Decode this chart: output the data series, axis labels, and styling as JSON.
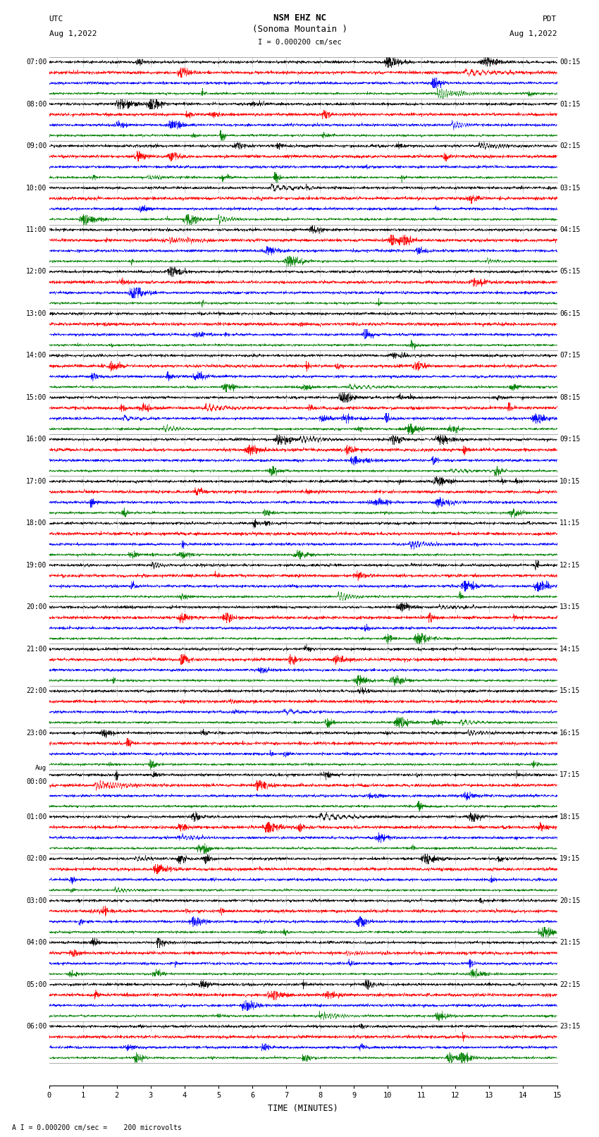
{
  "title_line1": "NSM EHZ NC",
  "title_line2": "(Sonoma Mountain )",
  "scale_label": "I = 0.000200 cm/sec",
  "left_label_top": "UTC",
  "left_label_date": "Aug 1,2022",
  "right_label_top": "PDT",
  "right_label_date": "Aug 1,2022",
  "bottom_label": "TIME (MINUTES)",
  "footer_text": "A I = 0.000200 cm/sec =    200 microvolts",
  "xlabel_ticks": [
    0,
    1,
    2,
    3,
    4,
    5,
    6,
    7,
    8,
    9,
    10,
    11,
    12,
    13,
    14,
    15
  ],
  "utc_times": [
    "07:00",
    "08:00",
    "09:00",
    "10:00",
    "11:00",
    "12:00",
    "13:00",
    "14:00",
    "15:00",
    "16:00",
    "17:00",
    "18:00",
    "19:00",
    "20:00",
    "21:00",
    "22:00",
    "23:00",
    "00:00",
    "01:00",
    "02:00",
    "03:00",
    "04:00",
    "05:00",
    "06:00"
  ],
  "utc_aug_row": 17,
  "pdt_times": [
    "00:15",
    "01:15",
    "02:15",
    "03:15",
    "04:15",
    "05:15",
    "06:15",
    "07:15",
    "08:15",
    "09:15",
    "10:15",
    "11:15",
    "12:15",
    "13:15",
    "14:15",
    "15:15",
    "16:15",
    "17:15",
    "18:15",
    "19:15",
    "20:15",
    "21:15",
    "22:15",
    "23:15"
  ],
  "num_rows": 24,
  "traces_per_row": 4,
  "fig_width": 8.5,
  "fig_height": 16.13,
  "bg_color": "white",
  "trace_color_order": [
    "black",
    "red",
    "blue",
    "green"
  ],
  "n_points": 3000,
  "base_noise_std": 0.3,
  "grid_color": "#aaaaaa",
  "grid_linewidth": 0.4
}
